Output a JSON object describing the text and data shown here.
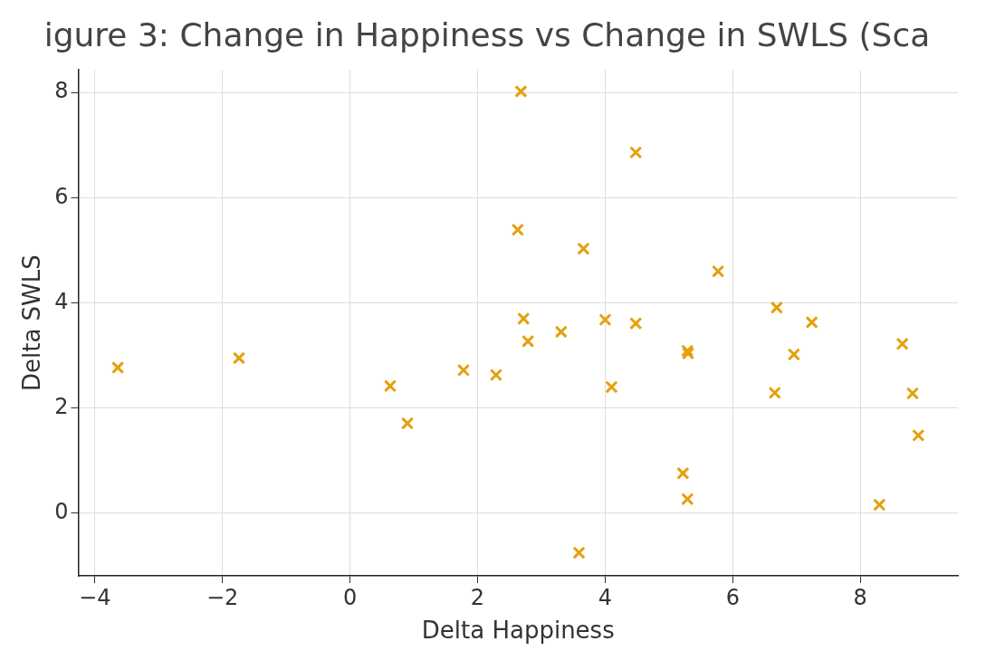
{
  "chart_data": {
    "type": "scatter",
    "title": "igure 3: Change in Happiness vs Change in SWLS (Sca",
    "xlabel": "Delta Happiness",
    "ylabel": "Delta SWLS",
    "series": [
      {
        "color": "#e5a00d",
        "x": [
          -3.64,
          -1.74,
          0.63,
          0.9,
          1.78,
          2.29,
          2.68,
          2.63,
          2.72,
          2.79,
          3.31,
          3.66,
          3.59,
          4.0,
          4.1,
          4.48,
          4.48,
          5.22,
          5.29,
          5.29,
          5.3,
          5.77,
          6.69,
          6.66,
          6.96,
          7.24,
          8.3,
          8.66,
          8.82,
          8.91
        ],
        "values": [
          2.77,
          2.95,
          2.42,
          1.71,
          2.72,
          2.63,
          8.02,
          5.39,
          3.7,
          3.27,
          3.45,
          5.03,
          -0.75,
          3.68,
          2.4,
          6.86,
          3.61,
          0.76,
          0.27,
          3.09,
          3.04,
          4.6,
          3.91,
          2.29,
          3.02,
          3.63,
          0.16,
          3.22,
          2.28,
          1.48
        ]
      }
    ],
    "xlim": [
      -4.26,
      9.53
    ],
    "xticks": [
      -4,
      -2,
      0,
      2,
      4,
      6,
      8
    ],
    "ylim": [
      -1.19,
      8.43
    ],
    "yticks": [
      0,
      2,
      4,
      6,
      8
    ],
    "grid": true,
    "marker": "cross",
    "legend": false
  }
}
